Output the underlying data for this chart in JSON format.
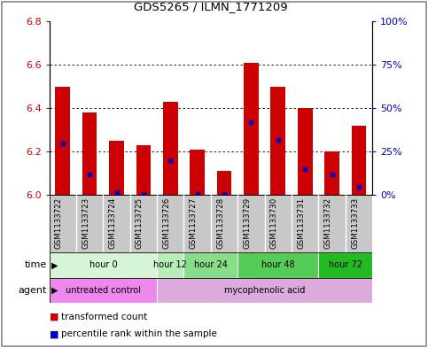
{
  "title": "GDS5265 / ILMN_1771209",
  "samples": [
    "GSM1133722",
    "GSM1133723",
    "GSM1133724",
    "GSM1133725",
    "GSM1133726",
    "GSM1133727",
    "GSM1133728",
    "GSM1133729",
    "GSM1133730",
    "GSM1133731",
    "GSM1133732",
    "GSM1133733"
  ],
  "transformed_counts": [
    6.5,
    6.38,
    6.25,
    6.23,
    6.43,
    6.21,
    6.11,
    6.61,
    6.5,
    6.4,
    6.2,
    6.32
  ],
  "percentile_ranks": [
    30,
    12,
    2,
    1,
    20,
    1,
    1,
    42,
    32,
    15,
    12,
    5
  ],
  "ylim_left": [
    6.0,
    6.8
  ],
  "ylim_right": [
    0,
    100
  ],
  "yticks_left": [
    6.0,
    6.2,
    6.4,
    6.6,
    6.8
  ],
  "yticks_right": [
    0,
    25,
    50,
    75,
    100
  ],
  "ytick_labels_right": [
    "0%",
    "25%",
    "50%",
    "75%",
    "100%"
  ],
  "grid_ticks": [
    6.2,
    6.4,
    6.6
  ],
  "bar_color": "#cc0000",
  "percentile_color": "#0000cc",
  "bar_width": 0.55,
  "time_groups": [
    {
      "label": "hour 0",
      "start": 0,
      "end": 3
    },
    {
      "label": "hour 12",
      "start": 4,
      "end": 4
    },
    {
      "label": "hour 24",
      "start": 5,
      "end": 6
    },
    {
      "label": "hour 48",
      "start": 7,
      "end": 9
    },
    {
      "label": "hour 72",
      "start": 10,
      "end": 11
    }
  ],
  "time_colors": [
    "#d6f5d6",
    "#b8edb8",
    "#88dd88",
    "#55cc55",
    "#22bb22"
  ],
  "agent_groups": [
    {
      "label": "untreated control",
      "start": 0,
      "end": 3
    },
    {
      "label": "mycophenolic acid",
      "start": 4,
      "end": 11
    }
  ],
  "agent_colors": [
    "#ee88ee",
    "#ddaadd"
  ],
  "sample_area_color": "#c8c8c8",
  "legend_red_label": "transformed count",
  "legend_blue_label": "percentile rank within the sample",
  "bar_label_color": "#cc0000",
  "pct_label_color": "#0000cc",
  "fig_border_color": "#888888"
}
